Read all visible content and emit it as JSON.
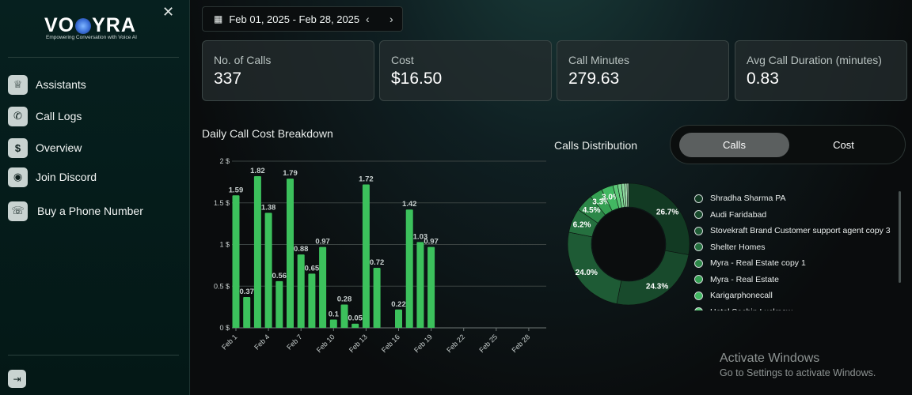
{
  "brand": {
    "name_left": "VO",
    "name_right": "YRA",
    "tagline": "Empowering Conversation with Voice AI"
  },
  "sidebar": {
    "close_icon": "close-icon",
    "items": [
      {
        "label": "Assistants",
        "icon": "trophy-icon",
        "glyph": "🏆"
      },
      {
        "label": "Call Logs",
        "icon": "phone-icon",
        "glyph": "📞"
      },
      {
        "label": "Overview",
        "icon": "dollar-icon",
        "glyph": "$"
      },
      {
        "label": "Join Discord",
        "icon": "discord-icon",
        "glyph": "◉"
      },
      {
        "label": "Buy a Phone Number",
        "icon": "phone-plus-icon",
        "glyph": "☏"
      }
    ],
    "logout_icon": "logout-icon"
  },
  "date_range": {
    "label": "Feb 01, 2025 - Feb 28, 2025"
  },
  "stats": [
    {
      "label": "No. of Calls",
      "value": "337"
    },
    {
      "label": "Cost",
      "value": "$16.50"
    },
    {
      "label": "Call Minutes",
      "value": "279.63"
    },
    {
      "label": "Avg Call Duration (minutes)",
      "value": "0.83"
    }
  ],
  "cost_chart_title": "Daily Call Cost Breakdown",
  "distribution": {
    "title": "Calls Distribution",
    "tabs": [
      {
        "label": "Calls",
        "active": true
      },
      {
        "label": "Cost",
        "active": false
      }
    ],
    "legend": [
      "Shradha Sharma PA",
      "Audi Faridabad",
      "Stovekraft Brand Customer support agent copy 3",
      "Shelter Homes",
      "Myra - Real Estate copy 1",
      "Myra - Real Estate",
      "Karigarphonecall",
      "Hotel Sachin Lucknow"
    ]
  },
  "chart_data": [
    {
      "type": "bar",
      "title": "Daily Call Cost Breakdown",
      "x_ticks": [
        "Feb 1",
        "Feb 4",
        "Feb 7",
        "Feb 10",
        "Feb 13",
        "Feb 16",
        "Feb 19",
        "Feb 22",
        "Feb 25",
        "Feb 28"
      ],
      "y_ticks": [
        "0 $",
        "0.5 $",
        "1 $",
        "1.5 $",
        "2 $"
      ],
      "ylim": [
        0,
        2
      ],
      "grid": true,
      "color": "#3cc15c",
      "points": [
        {
          "day": 1,
          "value": 1.59
        },
        {
          "day": 2,
          "value": 0.37
        },
        {
          "day": 3,
          "value": 1.82
        },
        {
          "day": 4,
          "value": 1.38
        },
        {
          "day": 5,
          "value": 0.56
        },
        {
          "day": 6,
          "value": 1.79
        },
        {
          "day": 7,
          "value": 0.88
        },
        {
          "day": 8,
          "value": 0.65
        },
        {
          "day": 9,
          "value": 0.97
        },
        {
          "day": 10,
          "value": 0.1
        },
        {
          "day": 11,
          "value": 0.28
        },
        {
          "day": 12,
          "value": 0.05
        },
        {
          "day": 13,
          "value": 1.72
        },
        {
          "day": 14,
          "value": 0.72
        },
        {
          "day": 16,
          "value": 0.22
        },
        {
          "day": 17,
          "value": 1.42
        },
        {
          "day": 18,
          "value": 1.03
        },
        {
          "day": 19,
          "value": 0.97
        }
      ]
    },
    {
      "type": "pie",
      "title": "Calls Distribution",
      "slices": [
        {
          "label": "26.7%",
          "value": 26.7,
          "color": "#123a23"
        },
        {
          "label": "24.3%",
          "value": 24.3,
          "color": "#184a2c"
        },
        {
          "label": "24.0%",
          "value": 24.0,
          "color": "#1e5b35"
        },
        {
          "label": "6.2%",
          "value": 6.2,
          "color": "#25703f"
        },
        {
          "label": "4.5%",
          "value": 4.5,
          "color": "#2c8748"
        },
        {
          "label": "3.3%",
          "value": 3.3,
          "color": "#35a053"
        },
        {
          "label": "3.0%",
          "value": 3.0,
          "color": "#42b862"
        },
        {
          "label": "",
          "value": 1.2,
          "color": "#5cc878"
        },
        {
          "label": "",
          "value": 1.0,
          "color": "#77d28d"
        },
        {
          "label": "",
          "value": 0.8,
          "color": "#8fdba1"
        },
        {
          "label": "",
          "value": 0.6,
          "color": "#a7e4b4"
        },
        {
          "label": "",
          "value": 0.4,
          "color": "#bdebc6"
        }
      ]
    }
  ],
  "legend_colors": [
    "#123a23",
    "#184a2c",
    "#1e5b35",
    "#25703f",
    "#2c8748",
    "#35a053",
    "#42b862",
    "#5cc878"
  ],
  "watermark": {
    "title": "Activate Windows",
    "subtitle": "Go to Settings to activate Windows."
  }
}
